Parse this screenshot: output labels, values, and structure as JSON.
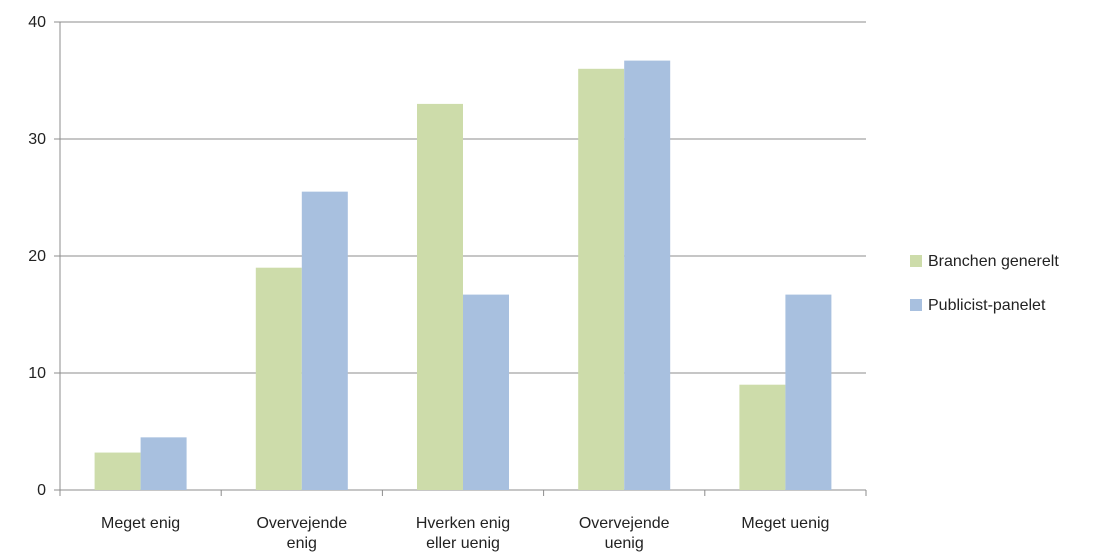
{
  "chart_data": {
    "type": "bar",
    "title": "",
    "xlabel": "",
    "ylabel": "",
    "categories": [
      [
        "Meget enig"
      ],
      [
        "Overvejende",
        "enig"
      ],
      [
        "Hverken enig",
        "eller uenig"
      ],
      [
        "Overvejende",
        "uenig"
      ],
      [
        "Meget uenig"
      ]
    ],
    "series": [
      {
        "name": "Branchen generelt",
        "color": "#cddcaa",
        "values": [
          3.2,
          19,
          33,
          36,
          9
        ]
      },
      {
        "name": "Publicist-panelet",
        "color": "#a8c0df",
        "values": [
          4.5,
          25.5,
          16.7,
          36.7,
          16.7
        ]
      }
    ],
    "ylim": [
      0,
      40
    ],
    "yticks": [
      0,
      10,
      20,
      30,
      40
    ],
    "grid": true,
    "legend_position": "right"
  }
}
